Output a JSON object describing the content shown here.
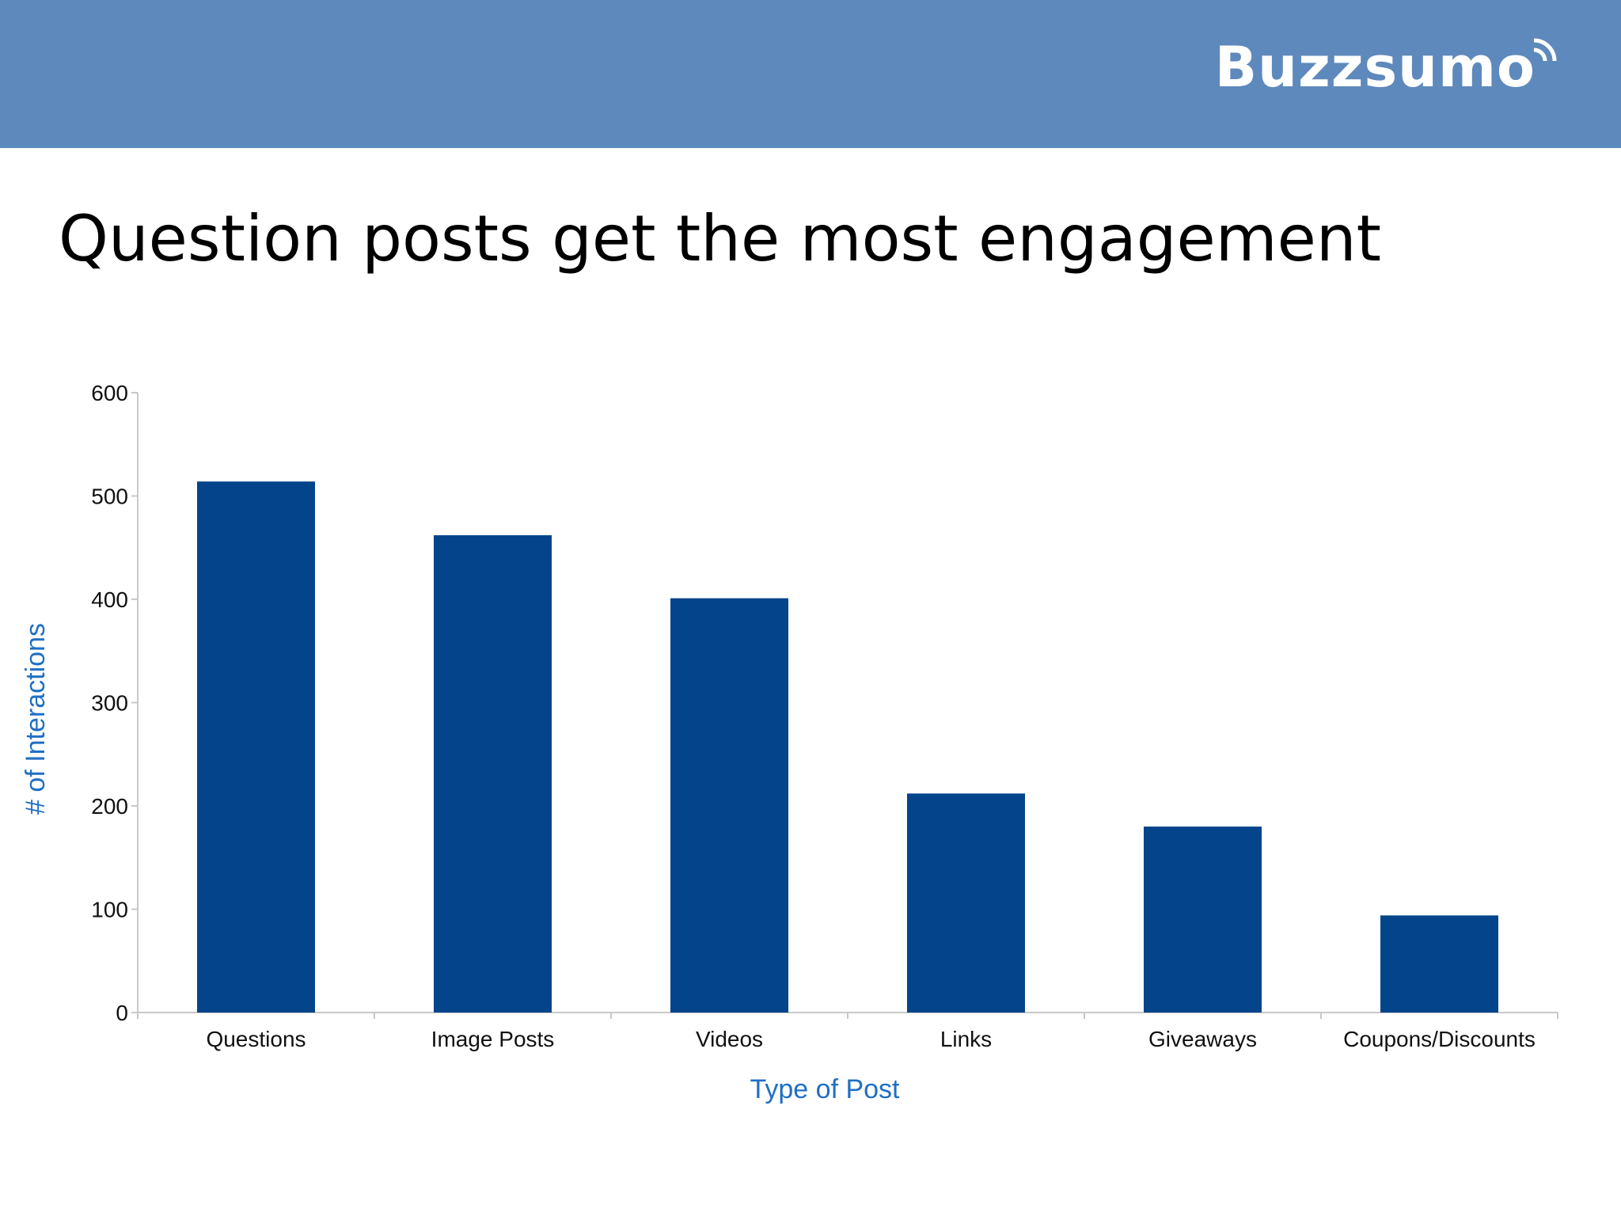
{
  "header": {
    "logo_text": "Buzzsumo",
    "bar_color": "#5e89bc"
  },
  "slide": {
    "title": "Question posts get the most engagement"
  },
  "chart_data": {
    "type": "bar",
    "title": "",
    "categories": [
      "Questions",
      "Image Posts",
      "Videos",
      "Links",
      "Giveaways",
      "Coupons/Discounts"
    ],
    "values": [
      514,
      462,
      401,
      212,
      180,
      94
    ],
    "xlabel": "Type of Post",
    "ylabel": "# of Interactions",
    "ylim": [
      0,
      600
    ],
    "yticks": [
      0,
      100,
      200,
      300,
      400,
      500,
      600
    ],
    "grid": false,
    "legend": "none",
    "bar_color": "#03448a",
    "label_color": "#1f6fc4"
  }
}
